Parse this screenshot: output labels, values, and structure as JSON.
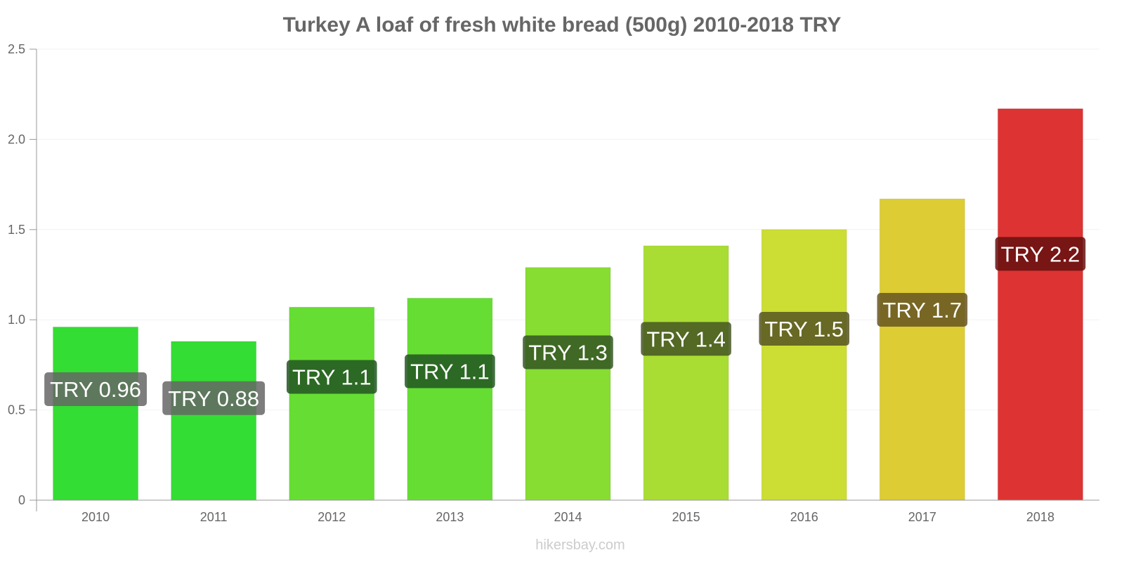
{
  "page": {
    "watermark": "hikersbay.com"
  },
  "chart_data": {
    "type": "bar",
    "title": "Turkey A loaf of fresh white bread (500g) 2010-2018 TRY",
    "xlabel": "",
    "ylabel": "",
    "ylim": [
      0,
      2.5
    ],
    "yticks": [
      0,
      0.5,
      1.0,
      1.5,
      2.0,
      2.5
    ],
    "ytick_labels": [
      "0",
      "0.5",
      "1.0",
      "1.5",
      "2.0",
      "2.5"
    ],
    "grid": true,
    "legend": "none",
    "categories": [
      "2010",
      "2011",
      "2012",
      "2013",
      "2014",
      "2015",
      "2016",
      "2017",
      "2018"
    ],
    "values": [
      0.96,
      0.88,
      1.07,
      1.12,
      1.29,
      1.41,
      1.5,
      1.67,
      2.17
    ],
    "data_labels": [
      "TRY 0.96",
      "TRY 0.88",
      "TRY 1.1",
      "TRY 1.1",
      "TRY 1.3",
      "TRY 1.4",
      "TRY 1.5",
      "TRY 1.7",
      "TRY 2.2"
    ],
    "bar_colors": [
      "#33dd33",
      "#33dd33",
      "#66dd33",
      "#66dd33",
      "#88dd33",
      "#aadd33",
      "#ccdd33",
      "#ddcc33",
      "#dd3333"
    ],
    "label_colors": [
      "#666666",
      "#666666",
      "#225522",
      "#225522",
      "#335522",
      "#445522",
      "#555522",
      "#665522",
      "#661111"
    ]
  }
}
